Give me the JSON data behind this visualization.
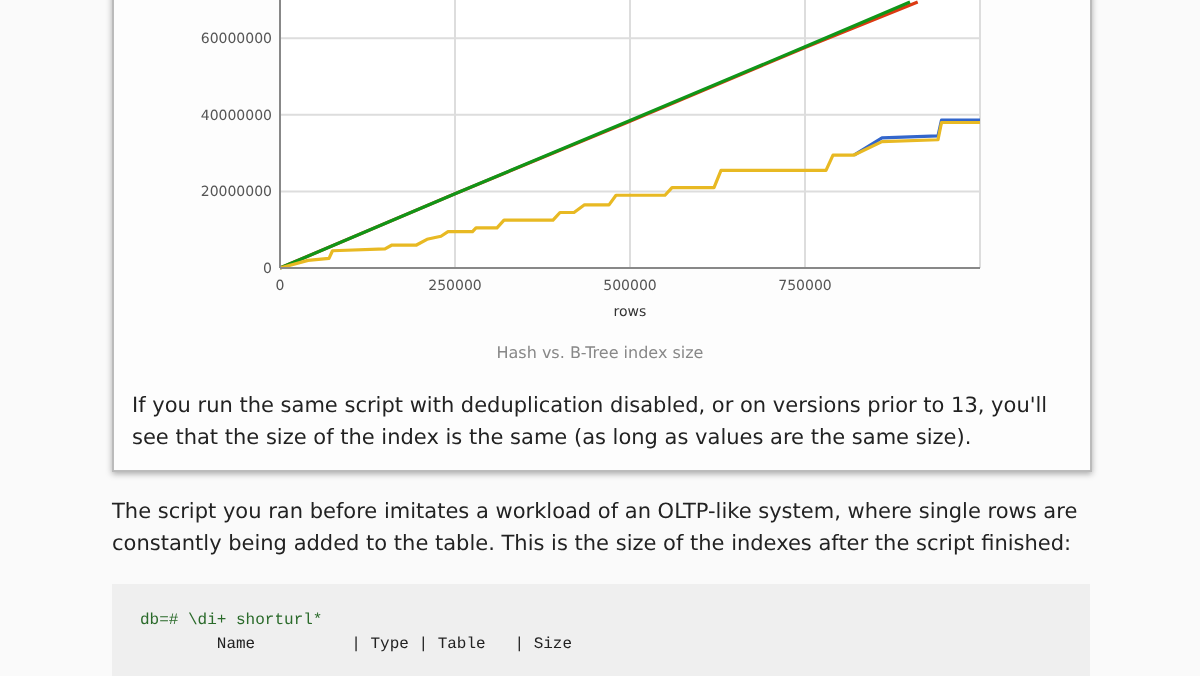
{
  "chart_data": {
    "type": "line",
    "title": "Hash vs. B-Tree index size",
    "xlabel": "rows",
    "xlim": [
      0,
      1000000
    ],
    "xticks": [
      0,
      250000,
      500000,
      750000
    ],
    "ylim": [
      0,
      70000000
    ],
    "yticks": [
      0,
      20000000,
      40000000,
      60000000
    ],
    "grid": true,
    "marker": "none",
    "line_style": "solid",
    "series": [
      {
        "color": "#dc3912",
        "x": [
          0,
          250000,
          500000,
          750000,
          911000
        ],
        "values": [
          0,
          19400000,
          38300000,
          57600000,
          69500000
        ]
      },
      {
        "color": "#109618",
        "x": [
          0,
          250000,
          500000,
          750000,
          900000
        ],
        "values": [
          0,
          19400000,
          38500000,
          57800000,
          69500000
        ]
      },
      {
        "color": "#3366cc",
        "x": [
          820000,
          860000,
          940000,
          945000,
          1000000
        ],
        "values": [
          29500000,
          34000000,
          34500000,
          38600000,
          38600000
        ]
      },
      {
        "color": "#e8b923",
        "x": [
          0,
          40000,
          70000,
          75000,
          150000,
          160000,
          195000,
          210000,
          230000,
          240000,
          275000,
          280000,
          310000,
          320000,
          390000,
          400000,
          420000,
          435000,
          470000,
          480000,
          550000,
          560000,
          620000,
          630000,
          780000,
          790000,
          820000,
          860000,
          940000,
          945000,
          1000000
        ],
        "values": [
          0,
          2000000,
          2500000,
          4500000,
          5000000,
          6000000,
          6000000,
          7500000,
          8300000,
          9500000,
          9500000,
          10500000,
          10500000,
          12500000,
          12500000,
          14500000,
          14500000,
          16500000,
          16500000,
          19000000,
          19000000,
          21000000,
          21000000,
          25500000,
          25500000,
          29500000,
          29500000,
          33000000,
          33500000,
          38000000,
          38000000
        ]
      }
    ],
    "annotations": [
      "If you run the same script with deduplication disabled, or on versions prior to 13, you'll see that the size of the index is the same (as long as values are the same size).",
      "The script you ran before imitates a workload of an OLTP-like system, where single rows are constantly being added to the table. This is the size of the indexes after the script finished:",
      "db=# \\di+ shorturl*",
      "        Name          | Type | Table   | Size"
    ]
  }
}
